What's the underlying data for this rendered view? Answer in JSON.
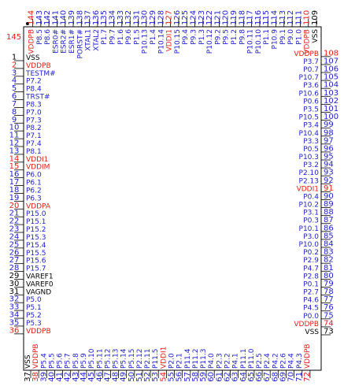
{
  "pin1_marker": {
    "text": "145",
    "color": "#e0201a"
  },
  "pins": {
    "left": [
      {
        "number": 1,
        "name": "VSS",
        "color": "#000000"
      },
      {
        "number": 2,
        "name": "VDDPB",
        "color": "#e0201a"
      },
      {
        "number": 3,
        "name": "TESTM#",
        "color": "#2323c8"
      },
      {
        "number": 4,
        "name": "P7.2",
        "color": "#2323c8"
      },
      {
        "number": 5,
        "name": "P8.4",
        "color": "#2323c8"
      },
      {
        "number": 6,
        "name": "TRST#",
        "color": "#2323c8"
      },
      {
        "number": 7,
        "name": "P8.3",
        "color": "#2323c8"
      },
      {
        "number": 8,
        "name": "P7.0",
        "color": "#2323c8"
      },
      {
        "number": 9,
        "name": "P7.3",
        "color": "#2323c8"
      },
      {
        "number": 10,
        "name": "P8.2",
        "color": "#2323c8"
      },
      {
        "number": 11,
        "name": "P7.1",
        "color": "#2323c8"
      },
      {
        "number": 12,
        "name": "P7.4",
        "color": "#2323c8"
      },
      {
        "number": 13,
        "name": "P8.1",
        "color": "#2323c8"
      },
      {
        "number": 14,
        "name": "VDDI1",
        "color": "#e0201a"
      },
      {
        "number": 15,
        "name": "VDDIM",
        "color": "#e0201a"
      },
      {
        "number": 16,
        "name": "P6.0",
        "color": "#2323c8"
      },
      {
        "number": 17,
        "name": "P6.1",
        "color": "#2323c8"
      },
      {
        "number": 18,
        "name": "P6.2",
        "color": "#2323c8"
      },
      {
        "number": 19,
        "name": "P6.3",
        "color": "#2323c8"
      },
      {
        "number": 20,
        "name": "VDDPA",
        "color": "#e0201a"
      },
      {
        "number": 21,
        "name": "P15.0",
        "color": "#2323c8"
      },
      {
        "number": 22,
        "name": "P15.1",
        "color": "#2323c8"
      },
      {
        "number": 23,
        "name": "P15.2",
        "color": "#2323c8"
      },
      {
        "number": 24,
        "name": "P15.3",
        "color": "#2323c8"
      },
      {
        "number": 25,
        "name": "P15.4",
        "color": "#2323c8"
      },
      {
        "number": 26,
        "name": "P15.5",
        "color": "#2323c8"
      },
      {
        "number": 27,
        "name": "P15.6",
        "color": "#2323c8"
      },
      {
        "number": 28,
        "name": "P15.7",
        "color": "#2323c8"
      },
      {
        "number": 29,
        "name": "VAREF1",
        "color": "#000000"
      },
      {
        "number": 30,
        "name": "VAREF0",
        "color": "#000000"
      },
      {
        "number": 31,
        "name": "VAGND",
        "color": "#000000"
      },
      {
        "number": 32,
        "name": "P5.0",
        "color": "#2323c8"
      },
      {
        "number": 33,
        "name": "P5.1",
        "color": "#2323c8"
      },
      {
        "number": 34,
        "name": "P5.2",
        "color": "#2323c8"
      },
      {
        "number": 35,
        "name": "P5.3",
        "color": "#2323c8"
      },
      {
        "number": 36,
        "name": "VDDPB",
        "color": "#e0201a"
      }
    ],
    "bottom": [
      {
        "number": 37,
        "name": "VSS",
        "color": "#000000"
      },
      {
        "number": 38,
        "name": "VDDPB",
        "color": "#e0201a"
      },
      {
        "number": 39,
        "name": "P5.4",
        "color": "#2323c8"
      },
      {
        "number": 40,
        "name": "P5.5",
        "color": "#2323c8"
      },
      {
        "number": 41,
        "name": "P5.6",
        "color": "#2323c8"
      },
      {
        "number": 42,
        "name": "P5.7",
        "color": "#2323c8"
      },
      {
        "number": 43,
        "name": "P5.8",
        "color": "#2323c8"
      },
      {
        "number": 44,
        "name": "P5.9",
        "color": "#2323c8"
      },
      {
        "number": 45,
        "name": "P5.10",
        "color": "#2323c8"
      },
      {
        "number": 46,
        "name": "P5.11",
        "color": "#2323c8"
      },
      {
        "number": 47,
        "name": "P5.12",
        "color": "#2323c8"
      },
      {
        "number": 48,
        "name": "P5.13",
        "color": "#2323c8"
      },
      {
        "number": 49,
        "name": "P5.14",
        "color": "#2323c8"
      },
      {
        "number": 50,
        "name": "P5.15",
        "color": "#2323c8"
      },
      {
        "number": 51,
        "name": "P2.12",
        "color": "#2323c8"
      },
      {
        "number": 52,
        "name": "P2.11",
        "color": "#2323c8"
      },
      {
        "number": 53,
        "name": "P11.5",
        "color": "#2323c8"
      },
      {
        "number": 54,
        "name": "VDDI1",
        "color": "#e0201a"
      },
      {
        "number": 55,
        "name": "P2.0",
        "color": "#2323c8"
      },
      {
        "number": 56,
        "name": "P2.1",
        "color": "#2323c8"
      },
      {
        "number": 57,
        "name": "P11.4",
        "color": "#2323c8"
      },
      {
        "number": 58,
        "name": "P11.2",
        "color": "#2323c8"
      },
      {
        "number": 59,
        "name": "P11.3",
        "color": "#2323c8"
      },
      {
        "number": 60,
        "name": "P4.0",
        "color": "#2323c8"
      },
      {
        "number": 61,
        "name": "P2.3",
        "color": "#2323c8"
      },
      {
        "number": 62,
        "name": "P2.2",
        "color": "#2323c8"
      },
      {
        "number": 63,
        "name": "P4.1",
        "color": "#2323c8"
      },
      {
        "number": 64,
        "name": "P11.1",
        "color": "#2323c8"
      },
      {
        "number": 65,
        "name": "P11.0",
        "color": "#2323c8"
      },
      {
        "number": 66,
        "name": "P2.5",
        "color": "#2323c8"
      },
      {
        "number": 67,
        "name": "P2.4",
        "color": "#2323c8"
      },
      {
        "number": 68,
        "name": "P4.2",
        "color": "#2323c8"
      },
      {
        "number": 69,
        "name": "P2.6",
        "color": "#2323c8"
      },
      {
        "number": 70,
        "name": "P4.4",
        "color": "#2323c8"
      },
      {
        "number": 71,
        "name": "P4.3",
        "color": "#2323c8"
      },
      {
        "number": 72,
        "name": "VDDPB",
        "color": "#e0201a"
      }
    ],
    "right": [
      {
        "number": 73,
        "name": "VSS",
        "color": "#000000"
      },
      {
        "number": 74,
        "name": "VDDPB",
        "color": "#e0201a"
      },
      {
        "number": 75,
        "name": "P0.0",
        "color": "#2323c8"
      },
      {
        "number": 76,
        "name": "P4.5",
        "color": "#2323c8"
      },
      {
        "number": 77,
        "name": "P4.6",
        "color": "#2323c8"
      },
      {
        "number": 78,
        "name": "P2.7",
        "color": "#2323c8"
      },
      {
        "number": 79,
        "name": "P0.1",
        "color": "#2323c8"
      },
      {
        "number": 80,
        "name": "P2.8",
        "color": "#2323c8"
      },
      {
        "number": 81,
        "name": "P4.7",
        "color": "#2323c8"
      },
      {
        "number": 82,
        "name": "P2.9",
        "color": "#2323c8"
      },
      {
        "number": 83,
        "name": "P0.2",
        "color": "#2323c8"
      },
      {
        "number": 84,
        "name": "P10.0",
        "color": "#2323c8"
      },
      {
        "number": 85,
        "name": "P3.0",
        "color": "#2323c8"
      },
      {
        "number": 86,
        "name": "P10.1",
        "color": "#2323c8"
      },
      {
        "number": 87,
        "name": "P0.3",
        "color": "#2323c8"
      },
      {
        "number": 88,
        "name": "P3.1",
        "color": "#2323c8"
      },
      {
        "number": 89,
        "name": "P10.2",
        "color": "#2323c8"
      },
      {
        "number": 90,
        "name": "P0.4",
        "color": "#2323c8"
      },
      {
        "number": 91,
        "name": "VDDI1",
        "color": "#e0201a"
      },
      {
        "number": 92,
        "name": "P2.13",
        "color": "#2323c8"
      },
      {
        "number": 93,
        "name": "P2.10",
        "color": "#2323c8"
      },
      {
        "number": 94,
        "name": "P3.2",
        "color": "#2323c8"
      },
      {
        "number": 95,
        "name": "P10.3",
        "color": "#2323c8"
      },
      {
        "number": 96,
        "name": "P0.5",
        "color": "#2323c8"
      },
      {
        "number": 97,
        "name": "P3.3",
        "color": "#2323c8"
      },
      {
        "number": 98,
        "name": "P10.4",
        "color": "#2323c8"
      },
      {
        "number": 99,
        "name": "P3.4",
        "color": "#2323c8"
      },
      {
        "number": 100,
        "name": "P10.5",
        "color": "#2323c8"
      },
      {
        "number": 101,
        "name": "P3.5",
        "color": "#2323c8"
      },
      {
        "number": 102,
        "name": "P0.6",
        "color": "#2323c8"
      },
      {
        "number": 103,
        "name": "P10.6",
        "color": "#2323c8"
      },
      {
        "number": 104,
        "name": "P3.6",
        "color": "#2323c8"
      },
      {
        "number": 105,
        "name": "P10.7",
        "color": "#2323c8"
      },
      {
        "number": 106,
        "name": "P0.7",
        "color": "#2323c8"
      },
      {
        "number": 107,
        "name": "P3.7",
        "color": "#2323c8"
      },
      {
        "number": 108,
        "name": "VDDPB",
        "color": "#e0201a"
      }
    ],
    "top": [
      {
        "number": 109,
        "name": "VSS",
        "color": "#000000"
      },
      {
        "number": 110,
        "name": "VDDPB",
        "color": "#e0201a"
      },
      {
        "number": 111,
        "name": "P1.0",
        "color": "#2323c8"
      },
      {
        "number": 112,
        "name": "P9.0",
        "color": "#2323c8"
      },
      {
        "number": 113,
        "name": "P9.1",
        "color": "#2323c8"
      },
      {
        "number": 114,
        "name": "P10.9",
        "color": "#2323c8"
      },
      {
        "number": 115,
        "name": "P1.1",
        "color": "#2323c8"
      },
      {
        "number": 116,
        "name": "P10.10",
        "color": "#2323c8"
      },
      {
        "number": 117,
        "name": "P10.11",
        "color": "#2323c8"
      },
      {
        "number": 118,
        "name": "P9.8",
        "color": "#2323c8"
      },
      {
        "number": 119,
        "name": "P1.2",
        "color": "#2323c8"
      },
      {
        "number": 120,
        "name": "P9.5",
        "color": "#2323c8"
      },
      {
        "number": 121,
        "name": "P9.2",
        "color": "#2323c8"
      },
      {
        "number": 122,
        "name": "P10.12",
        "color": "#2323c8"
      },
      {
        "number": 123,
        "name": "P1.3",
        "color": "#2323c8"
      },
      {
        "number": 124,
        "name": "P9.3",
        "color": "#2323c8"
      },
      {
        "number": 125,
        "name": "P9.4",
        "color": "#2323c8"
      },
      {
        "number": 126,
        "name": "P10.15",
        "color": "#2323c8"
      },
      {
        "number": 127,
        "name": "VDDI1",
        "color": "#e0201a"
      },
      {
        "number": 128,
        "name": "P10.14",
        "color": "#2323c8"
      },
      {
        "number": 129,
        "name": "P1.4",
        "color": "#2323c8"
      },
      {
        "number": 130,
        "name": "P10.13",
        "color": "#2323c8"
      },
      {
        "number": 131,
        "name": "P1.5",
        "color": "#2323c8"
      },
      {
        "number": 132,
        "name": "P9.6",
        "color": "#2323c8"
      },
      {
        "number": 133,
        "name": "P1.6",
        "color": "#2323c8"
      },
      {
        "number": 134,
        "name": "P9.7",
        "color": "#2323c8"
      },
      {
        "number": 135,
        "name": "P1.7",
        "color": "#2323c8"
      },
      {
        "number": 136,
        "name": "XTAL2",
        "color": "#2323c8"
      },
      {
        "number": 137,
        "name": "XTAL1",
        "color": "#2323c8"
      },
      {
        "number": 138,
        "name": "PORST#",
        "color": "#2323c8"
      },
      {
        "number": 139,
        "name": "ESR1#",
        "color": "#2323c8"
      },
      {
        "number": 140,
        "name": "ESR2#",
        "color": "#2323c8"
      },
      {
        "number": 141,
        "name": "ESR0#",
        "color": "#2323c8"
      },
      {
        "number": 142,
        "name": "P8.6",
        "color": "#2323c8"
      },
      {
        "number": 143,
        "name": "P8.5",
        "color": "#2323c8"
      },
      {
        "number": 144,
        "name": "VDDPB",
        "color": "#e0201a"
      }
    ]
  }
}
